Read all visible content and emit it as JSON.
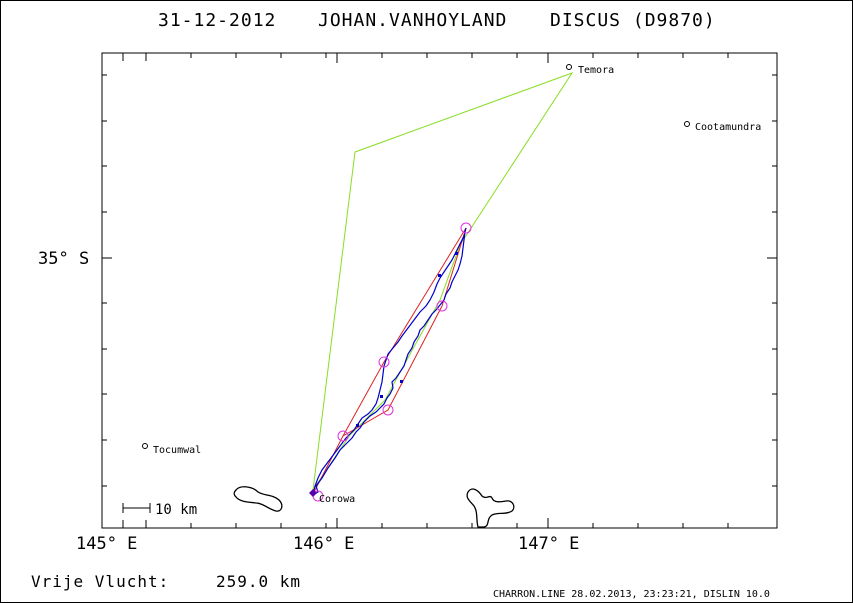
{
  "header": {
    "date": "31-12-2012",
    "pilot": "JOHAN.VANHOYLAND",
    "glider": "DISCUS (D9870)"
  },
  "axes": {
    "x_labels": [
      "145° E",
      "146° E",
      "147° E"
    ],
    "y_labels": [
      "35° S"
    ]
  },
  "towns": [
    {
      "name": "Temora"
    },
    {
      "name": "Cootamundra"
    },
    {
      "name": "Tocumwal"
    },
    {
      "name": "Corowa"
    }
  ],
  "scale_bar": {
    "label": "10 km"
  },
  "footer": {
    "flight_label": "Vrije Vlucht:",
    "distance": "259.0 km",
    "software": "CHARRON.LINE 28.02.2013, 23:23:21, DISLIN 10.0"
  },
  "colors": {
    "declared_task": "#88dd22",
    "flown_task": "#dd2222",
    "track": "#0000cc",
    "turnpoint": "#dd33dd"
  }
}
